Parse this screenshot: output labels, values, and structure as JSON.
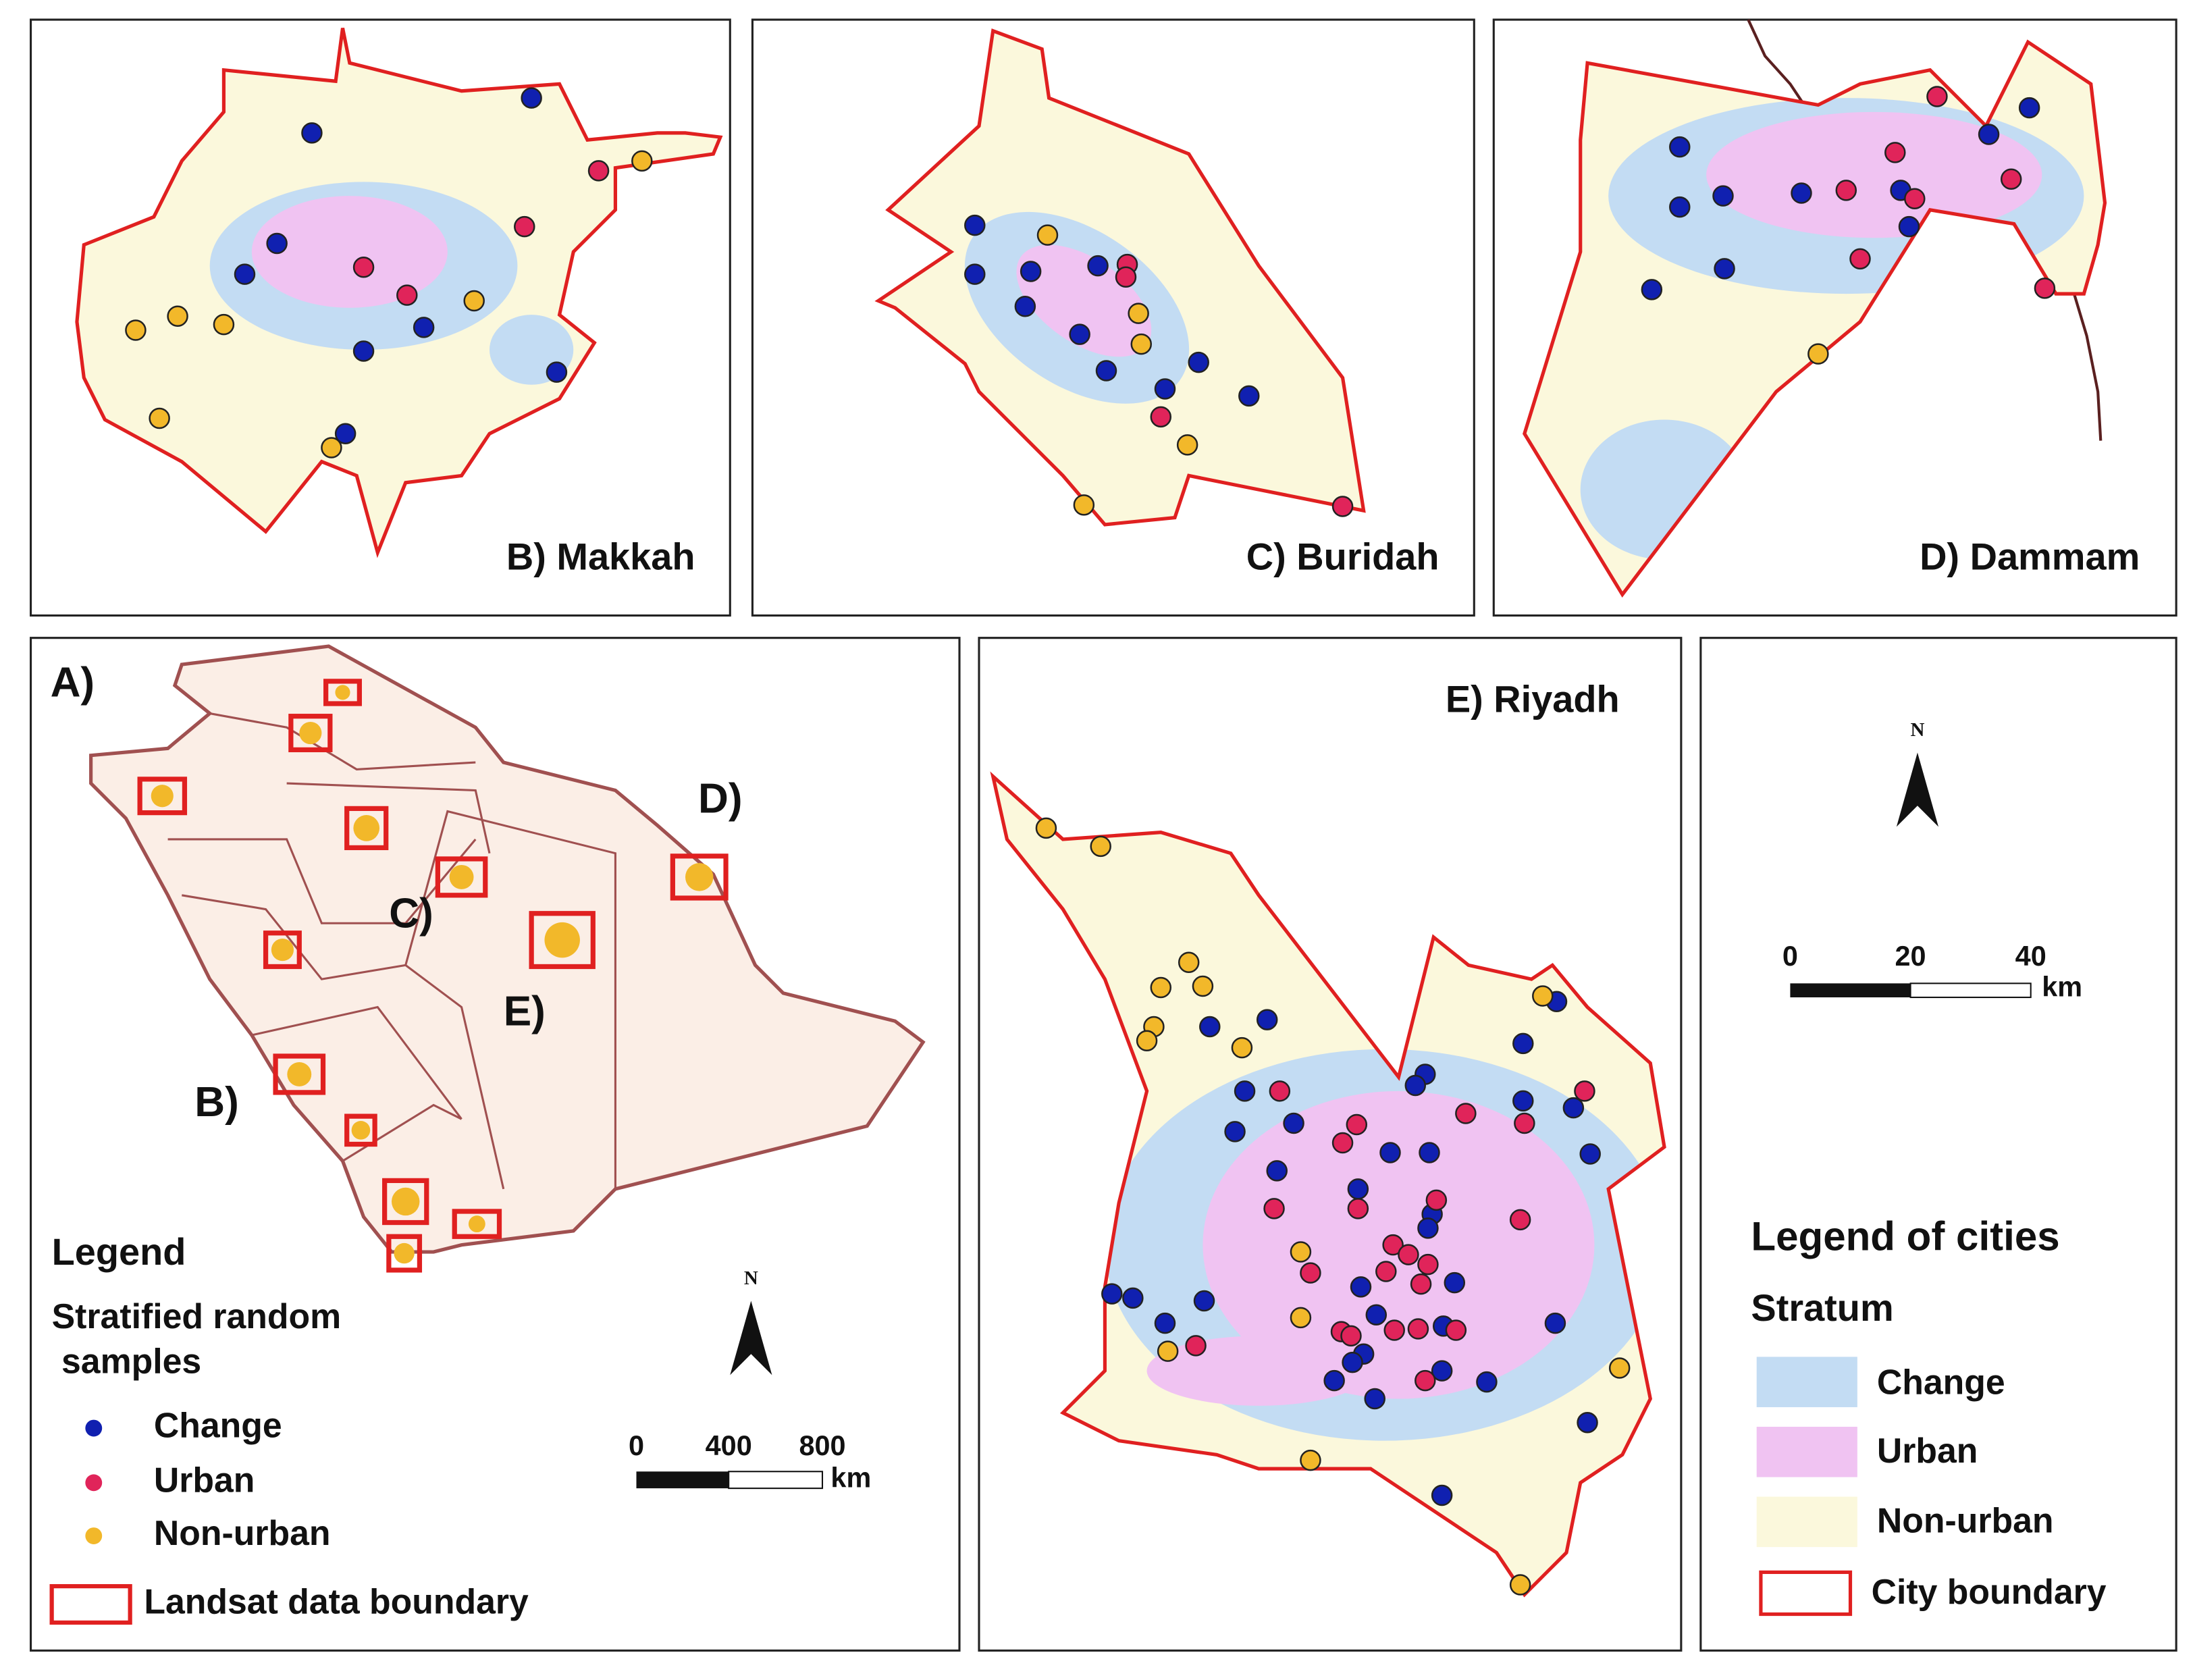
{
  "panels": {
    "b": "B) Makkah",
    "c": "C) Buridah",
    "d": "D) Dammam",
    "e": "E) Riyadh"
  },
  "overview": {
    "label": "A)",
    "markers": [
      "B)",
      "C)",
      "D)",
      "E)"
    ],
    "legend": {
      "title": "Legend",
      "subtitle": [
        "Stratified random",
        " samples"
      ],
      "items": [
        "Change",
        "Urban",
        "Non-urban"
      ],
      "boundary": "Landsat data boundary"
    },
    "north": "N",
    "scale": {
      "ticks": [
        0,
        400,
        800
      ],
      "unit": "km"
    }
  },
  "city_legend": {
    "title": "Legend of cities",
    "subtitle": "Stratum",
    "items": [
      "Change",
      "Urban",
      "Non-urban"
    ],
    "boundary": "City boundary",
    "north": "N",
    "scale": {
      "ticks": [
        0,
        20,
        40
      ],
      "unit": "km"
    }
  }
}
